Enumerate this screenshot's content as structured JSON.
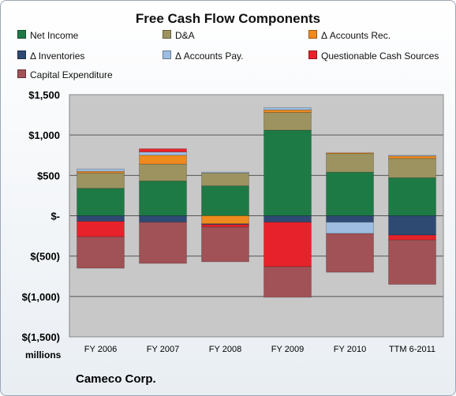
{
  "chart_data": {
    "type": "bar",
    "stacked": true,
    "title": "Free Cash Flow Components",
    "subtitle": "Cameco Corp.",
    "ylabel": "millions",
    "categories": [
      "FY 2006",
      "FY 2007",
      "FY 2008",
      "FY 2009",
      "FY 2010",
      "TTM 6-2011"
    ],
    "ylim": [
      -1500,
      1500
    ],
    "yticks": [
      -1500,
      -1000,
      -500,
      0,
      500,
      1000,
      1500
    ],
    "ytick_labels": [
      "$(1,500)",
      "$(1,000)",
      "$(500)",
      "$-",
      "$500",
      "$1,000",
      "$1,500"
    ],
    "grid": true,
    "legend_position": "top",
    "series": [
      {
        "name": "Net Income",
        "color": "#1e7a45",
        "values": [
          340,
          430,
          370,
          1060,
          540,
          470
        ]
      },
      {
        "name": "D&A",
        "color": "#9c9360",
        "values": [
          190,
          210,
          160,
          220,
          230,
          240
        ]
      },
      {
        "name": "Δ Accounts Rec.",
        "color": "#ee8a1e",
        "values": [
          20,
          110,
          -100,
          30,
          10,
          30
        ]
      },
      {
        "name": "Δ Inventories",
        "color": "#2e4a73",
        "values": [
          -70,
          -80,
          -10,
          -80,
          -80,
          -240
        ]
      },
      {
        "name": "Δ Accounts Pay.",
        "color": "#9ebde0",
        "values": [
          30,
          40,
          10,
          30,
          -140,
          10
        ]
      },
      {
        "name": "Questionable Cash Sources",
        "color": "#e8222a",
        "values": [
          -190,
          40,
          -30,
          -550,
          0,
          -60
        ]
      },
      {
        "name": "Capital Expenditure",
        "color": "#a05256",
        "values": [
          -390,
          -510,
          -430,
          -380,
          -480,
          -550
        ]
      }
    ]
  },
  "colors": {
    "plot_background": "#c8c8c8",
    "gridline": "#555555"
  }
}
